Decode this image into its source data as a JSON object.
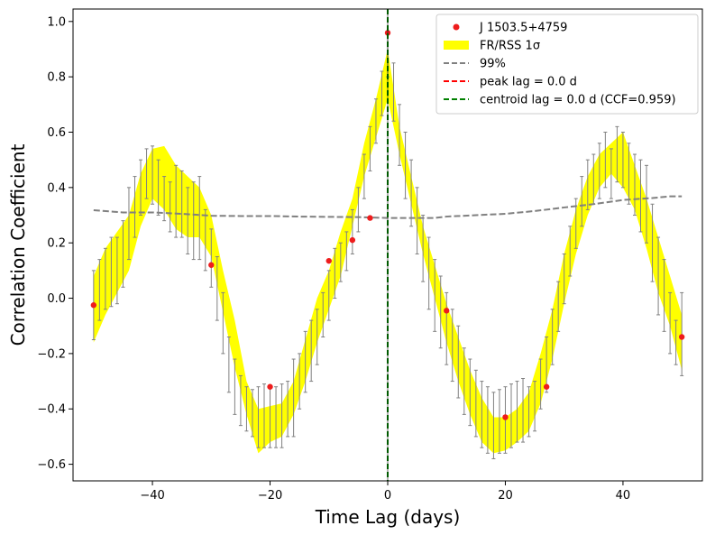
{
  "chart_data": {
    "type": "line",
    "title": "",
    "xlabel": "Time Lag (days)",
    "ylabel": "Correlation Coefficient",
    "xlim": [
      -53.5,
      53.5
    ],
    "ylim": [
      -0.66,
      1.045
    ],
    "xticks": [
      -40,
      -20,
      0,
      20,
      40
    ],
    "yticks": [
      -0.6,
      -0.4,
      -0.2,
      0.0,
      0.2,
      0.4,
      0.6,
      0.8,
      1.0
    ],
    "xtick_labels": [
      "−40",
      "−20",
      "0",
      "20",
      "40"
    ],
    "ytick_labels": [
      "−0.6",
      "−0.4",
      "−0.2",
      "0.0",
      "0.2",
      "0.4",
      "0.6",
      "0.8",
      "1.0"
    ],
    "grid": false,
    "legend_position": "top-right",
    "legend": {
      "points_label": "J 1503.5+4759",
      "band_label": "FR/RSS 1σ",
      "sig_label": "99%",
      "peak_label": "peak lag = 0.0 d",
      "centroid_label": "centroid lag = 0.0 d  (CCF=0.959)"
    },
    "colors": {
      "points": "#ee1c1c",
      "band": "#ffff00",
      "sig": "#808080",
      "peak": "#ff0000",
      "centroid": "#008000",
      "errorbar": "#808080"
    },
    "peak_lag": 0.0,
    "centroid_lag": 0.0,
    "ccf_peak": 0.959,
    "ccf_points": {
      "x": [
        -50,
        -30,
        -20,
        -10,
        -6,
        -3,
        0,
        10,
        20,
        27,
        50
      ],
      "y": [
        -0.025,
        0.12,
        -0.32,
        0.135,
        0.21,
        0.29,
        0.959,
        -0.045,
        -0.43,
        -0.32,
        -0.14
      ]
    },
    "significance_99": {
      "x": [
        -50,
        -45,
        -40,
        -35,
        -30,
        -25,
        -20,
        -15,
        -10,
        -5,
        0,
        5,
        8,
        10,
        15,
        20,
        25,
        30,
        35,
        40,
        45,
        48,
        50
      ],
      "y": [
        0.318,
        0.31,
        0.31,
        0.305,
        0.298,
        0.297,
        0.297,
        0.295,
        0.294,
        0.293,
        0.29,
        0.29,
        0.29,
        0.295,
        0.3,
        0.305,
        0.315,
        0.328,
        0.34,
        0.355,
        0.362,
        0.368,
        0.368
      ]
    },
    "fr_rss_band": {
      "x": [
        -50,
        -48,
        -46,
        -44,
        -42,
        -40,
        -38,
        -36,
        -34,
        -32,
        -30,
        -28,
        -26,
        -24,
        -22,
        -20,
        -18,
        -16,
        -14,
        -12,
        -10,
        -8,
        -6,
        -4,
        -2,
        0,
        2,
        4,
        6,
        8,
        10,
        12,
        14,
        16,
        18,
        20,
        22,
        24,
        26,
        28,
        30,
        32,
        34,
        36,
        38,
        40,
        42,
        44,
        46,
        48,
        50
      ],
      "lower": [
        -0.16,
        -0.06,
        0.02,
        0.1,
        0.26,
        0.36,
        0.32,
        0.25,
        0.22,
        0.22,
        0.15,
        -0.05,
        -0.25,
        -0.42,
        -0.56,
        -0.52,
        -0.5,
        -0.42,
        -0.3,
        -0.16,
        -0.04,
        0.08,
        0.26,
        0.44,
        0.58,
        0.72,
        0.52,
        0.34,
        0.16,
        0.0,
        -0.16,
        -0.3,
        -0.42,
        -0.52,
        -0.56,
        -0.55,
        -0.52,
        -0.48,
        -0.38,
        -0.22,
        -0.02,
        0.16,
        0.3,
        0.4,
        0.45,
        0.4,
        0.32,
        0.18,
        0.02,
        -0.1,
        -0.26
      ],
      "upper": [
        0.08,
        0.18,
        0.24,
        0.3,
        0.45,
        0.54,
        0.55,
        0.48,
        0.44,
        0.4,
        0.3,
        0.1,
        -0.08,
        -0.3,
        -0.4,
        -0.39,
        -0.38,
        -0.3,
        -0.15,
        0.0,
        0.1,
        0.24,
        0.36,
        0.56,
        0.72,
        0.9,
        0.62,
        0.44,
        0.26,
        0.12,
        -0.02,
        -0.14,
        -0.26,
        -0.36,
        -0.43,
        -0.43,
        -0.4,
        -0.34,
        -0.2,
        -0.04,
        0.16,
        0.32,
        0.44,
        0.52,
        0.56,
        0.6,
        0.48,
        0.36,
        0.22,
        0.08,
        -0.06
      ]
    },
    "errorbars": {
      "x": [
        -50,
        -49,
        -48,
        -47,
        -46,
        -45,
        -44,
        -43,
        -42,
        -41,
        -40,
        -39,
        -38,
        -37,
        -36,
        -35,
        -34,
        -33,
        -32,
        -31,
        -30,
        -29,
        -28,
        -27,
        -26,
        -25,
        -24,
        -23,
        -22,
        -21,
        -20,
        -19,
        -18,
        -17,
        -16,
        -15,
        -14,
        -13,
        -12,
        -11,
        -10,
        -9,
        -8,
        -7,
        -6,
        -5,
        -4,
        -3,
        -2,
        -1,
        0,
        1,
        2,
        3,
        4,
        5,
        6,
        7,
        8,
        9,
        10,
        11,
        12,
        13,
        14,
        15,
        16,
        17,
        18,
        19,
        20,
        21,
        22,
        23,
        24,
        25,
        26,
        27,
        28,
        29,
        30,
        31,
        32,
        33,
        34,
        35,
        36,
        37,
        38,
        39,
        40,
        41,
        42,
        43,
        44,
        45,
        46,
        47,
        48,
        49,
        50
      ],
      "top": [
        0.1,
        0.14,
        0.18,
        0.22,
        0.22,
        0.28,
        0.4,
        0.44,
        0.5,
        0.54,
        0.55,
        0.5,
        0.44,
        0.42,
        0.48,
        0.46,
        0.4,
        0.42,
        0.44,
        0.32,
        0.25,
        0.15,
        0.02,
        -0.14,
        -0.22,
        -0.28,
        -0.32,
        -0.33,
        -0.32,
        -0.31,
        -0.32,
        -0.32,
        -0.31,
        -0.3,
        -0.22,
        -0.2,
        -0.12,
        -0.08,
        -0.04,
        0.02,
        0.1,
        0.18,
        0.2,
        0.24,
        0.32,
        0.4,
        0.52,
        0.62,
        0.72,
        0.82,
        0.96,
        0.85,
        0.7,
        0.6,
        0.5,
        0.4,
        0.3,
        0.22,
        0.14,
        0.08,
        0.02,
        -0.04,
        -0.1,
        -0.18,
        -0.22,
        -0.26,
        -0.3,
        -0.32,
        -0.34,
        -0.33,
        -0.32,
        -0.31,
        -0.3,
        -0.29,
        -0.32,
        -0.3,
        -0.22,
        -0.14,
        -0.04,
        0.06,
        0.16,
        0.26,
        0.36,
        0.44,
        0.5,
        0.52,
        0.56,
        0.6,
        0.54,
        0.62,
        0.6,
        0.56,
        0.52,
        0.5,
        0.48,
        0.34,
        0.22,
        0.14,
        0.02,
        -0.08,
        0.02
      ],
      "bottom": [
        -0.15,
        -0.08,
        -0.04,
        -0.03,
        -0.02,
        0.04,
        0.14,
        0.22,
        0.3,
        0.36,
        0.34,
        0.3,
        0.28,
        0.24,
        0.22,
        0.22,
        0.16,
        0.14,
        0.14,
        0.1,
        0.04,
        -0.08,
        -0.2,
        -0.34,
        -0.42,
        -0.46,
        -0.48,
        -0.5,
        -0.54,
        -0.54,
        -0.54,
        -0.54,
        -0.54,
        -0.5,
        -0.5,
        -0.4,
        -0.34,
        -0.3,
        -0.24,
        -0.14,
        -0.08,
        0.0,
        0.06,
        0.1,
        0.16,
        0.24,
        0.36,
        0.46,
        0.56,
        0.66,
        0.8,
        0.64,
        0.48,
        0.36,
        0.26,
        0.16,
        0.06,
        -0.04,
        -0.12,
        -0.18,
        -0.24,
        -0.3,
        -0.36,
        -0.42,
        -0.46,
        -0.5,
        -0.54,
        -0.56,
        -0.58,
        -0.56,
        -0.56,
        -0.54,
        -0.52,
        -0.52,
        -0.5,
        -0.48,
        -0.4,
        -0.34,
        -0.24,
        -0.12,
        -0.02,
        0.08,
        0.18,
        0.26,
        0.32,
        0.34,
        0.36,
        0.4,
        0.36,
        0.42,
        0.4,
        0.34,
        0.3,
        0.24,
        0.2,
        0.06,
        -0.06,
        -0.12,
        -0.2,
        -0.24,
        -0.28
      ]
    }
  }
}
